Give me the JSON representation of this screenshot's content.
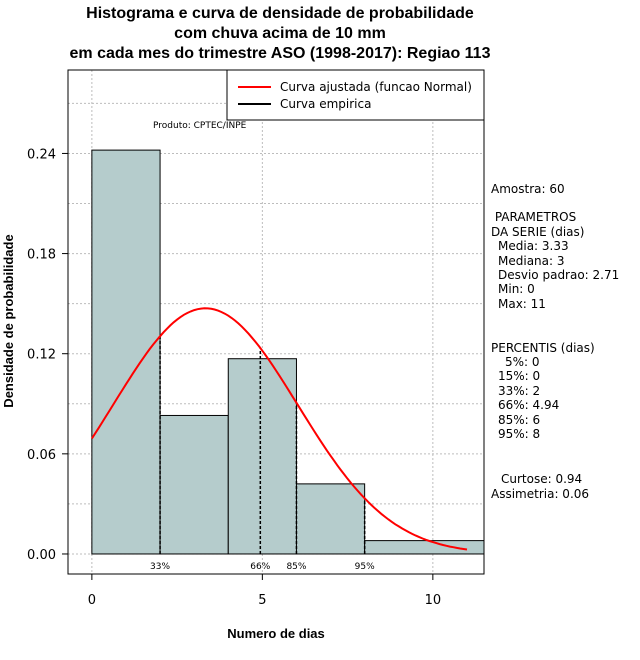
{
  "title_lines": [
    "Histograma e curva de densidade de probabilidade",
    "com chuva acima de 10 mm",
    "em cada mes do trimestre ASO (1998-2017): Regiao 113"
  ],
  "produto": "Produto: CPTEC/INPE",
  "legend": {
    "fitted": "Curva ajustada (funcao Normal)",
    "empirical": "Curva empirica"
  },
  "stats": {
    "amostra": "Amostra: 60",
    "param_header_1": " PARAMETROS",
    "param_header_2": "DA SERIE (dias)",
    "media": "Media: 3.33",
    "mediana": "Mediana: 3",
    "desvio": "Desvio padrao: 2.71",
    "min": "Min: 0",
    "max": "Max: 11",
    "perc_header": "PERCENTIS (dias)",
    "p5": "5%: 0",
    "p15": "15%: 0",
    "p33": "33%: 2",
    "p66": "66%: 4.94",
    "p85": "85%: 6",
    "p95": "95%: 8",
    "curtose": "Curtose: 0.94",
    "assimetria": "Assimetria: 0.06"
  },
  "chart_data": {
    "type": "bar",
    "xlabel": "Numero de dias",
    "ylabel": "Densidade de probabilidade",
    "xlim": [
      -0.7,
      11.5
    ],
    "ylim": [
      -0.012,
      0.29
    ],
    "x_ticks": [
      0,
      5,
      10
    ],
    "y_ticks": [
      0.0,
      0.06,
      0.12,
      0.18,
      0.24
    ],
    "y_tick_labels": [
      "0.00",
      "0.06",
      "0.12",
      "0.18",
      "0.24"
    ],
    "bins": [
      {
        "start": 0,
        "end": 2,
        "density": 0.242
      },
      {
        "start": 2,
        "end": 4,
        "density": 0.083
      },
      {
        "start": 4,
        "end": 6,
        "density": 0.117
      },
      {
        "start": 6,
        "end": 8,
        "density": 0.042
      },
      {
        "start": 8,
        "end": 11.5,
        "density": 0.008
      }
    ],
    "bar_color": "#b5cccc",
    "normal_fit": {
      "mean": 3.33,
      "sd": 2.71,
      "x_range": [
        0,
        11
      ],
      "color": "#ff0000"
    },
    "percentile_markers": [
      {
        "x": 2,
        "label": "33%"
      },
      {
        "x": 4.94,
        "label": "66%"
      },
      {
        "x": 6,
        "label": "85%"
      },
      {
        "x": 8,
        "label": "95%"
      }
    ],
    "grid": true
  }
}
